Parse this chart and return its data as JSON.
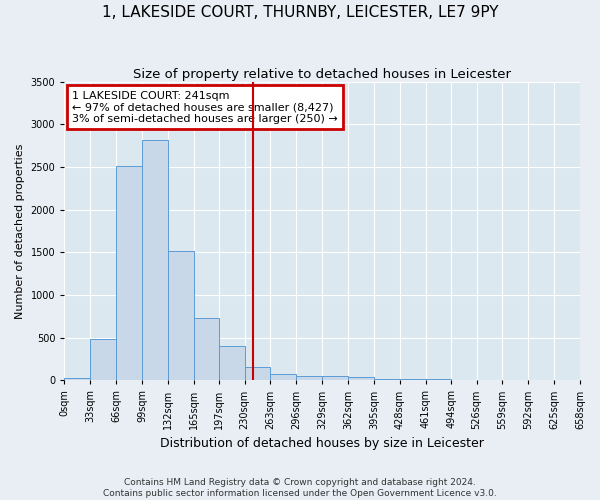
{
  "title": "1, LAKESIDE COURT, THURNBY, LEICESTER, LE7 9PY",
  "subtitle": "Size of property relative to detached houses in Leicester",
  "xlabel": "Distribution of detached houses by size in Leicester",
  "ylabel": "Number of detached properties",
  "bin_edges": [
    0,
    33,
    66,
    99,
    132,
    165,
    197,
    230,
    263,
    296,
    329,
    362,
    395,
    428,
    461,
    494,
    526,
    559,
    592,
    625,
    658
  ],
  "bar_heights": [
    30,
    480,
    2510,
    2820,
    1510,
    730,
    400,
    155,
    75,
    55,
    45,
    35,
    20,
    15,
    10,
    5,
    5,
    0,
    0,
    0
  ],
  "bar_color": "#c8d8e8",
  "bar_edge_color": "#5b9bd5",
  "property_size": 241,
  "vline_color": "#cc0000",
  "annotation_text": "1 LAKESIDE COURT: 241sqm\n← 97% of detached houses are smaller (8,427)\n3% of semi-detached houses are larger (250) →",
  "annotation_box_color": "#cc0000",
  "ylim": [
    0,
    3500
  ],
  "yticks": [
    0,
    500,
    1000,
    1500,
    2000,
    2500,
    3000,
    3500
  ],
  "footer_line1": "Contains HM Land Registry data © Crown copyright and database right 2024.",
  "footer_line2": "Contains public sector information licensed under the Open Government Licence v3.0.",
  "fig_bg_color": "#e8eef4",
  "plot_bg_color": "#dce8f0",
  "grid_color": "#ffffff",
  "title_fontsize": 11,
  "subtitle_fontsize": 9.5,
  "xlabel_fontsize": 9,
  "ylabel_fontsize": 8,
  "tick_fontsize": 7,
  "annotation_fontsize": 8,
  "footer_fontsize": 6.5
}
